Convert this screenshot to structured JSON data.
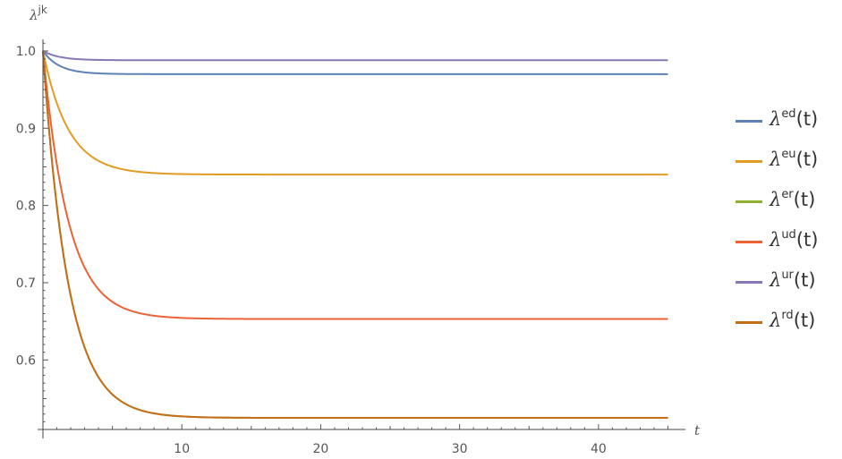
{
  "chart_data": {
    "type": "line",
    "xlabel": "t",
    "ylabel": {
      "symbol": "λ",
      "sup": "jk"
    },
    "xlim": [
      0,
      46
    ],
    "ylim": [
      0.51,
      1.015
    ],
    "xticks": [
      10,
      20,
      30,
      40
    ],
    "yticks": [
      0.6,
      0.7,
      0.8,
      0.9,
      1.0
    ],
    "ytick_labels": [
      "0.6",
      "0.7",
      "0.8",
      "0.9",
      "1.0"
    ],
    "legend_position": "right",
    "series": [
      {
        "name": "λed(t)",
        "symbol": "λ",
        "sup": "ed",
        "suffix": "(t)",
        "color": "#5e81b5",
        "start": 1.0,
        "end": 0.97,
        "rate": 0.85
      },
      {
        "name": "λeu(t)",
        "symbol": "λ",
        "sup": "eu",
        "suffix": "(t)",
        "color": "#e19c24",
        "start": 1.0,
        "end": 0.84,
        "rate": 0.55
      },
      {
        "name": "λer(t)",
        "symbol": "λ",
        "sup": "er",
        "suffix": "(t)",
        "color": "#8fb032",
        "start": 1.0,
        "end": 0.525,
        "rate": 0.55
      },
      {
        "name": "λud(t)",
        "symbol": "λ",
        "sup": "ud",
        "suffix": "(t)",
        "color": "#eb6235",
        "start": 1.0,
        "end": 0.653,
        "rate": 0.55
      },
      {
        "name": "λur(t)",
        "symbol": "λ",
        "sup": "ur",
        "suffix": "(t)",
        "color": "#8778b3",
        "start": 1.0,
        "end": 0.988,
        "rate": 0.85
      },
      {
        "name": "λrd(t)",
        "symbol": "λ",
        "sup": "rd",
        "suffix": "(t)",
        "color": "#c56e1a",
        "start": 1.0,
        "end": 0.525,
        "rate": 0.55
      }
    ]
  }
}
